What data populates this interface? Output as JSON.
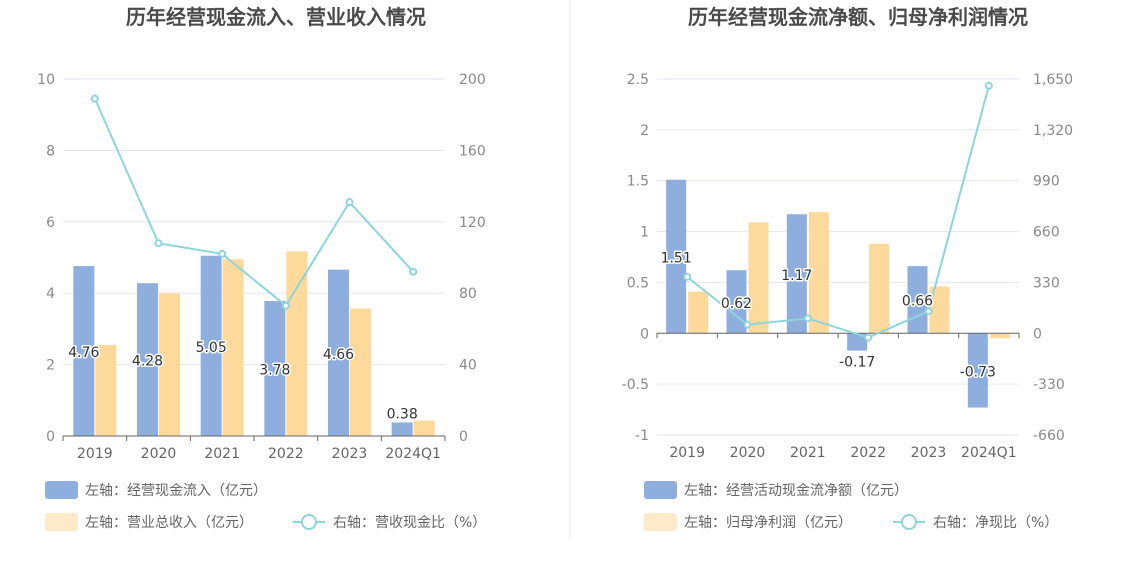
{
  "colors": {
    "bar_primary": "#8eaedd",
    "bar_secondary": "#fdd99c",
    "line": "#8dd5dc",
    "grid": "#e3e6f3",
    "axis": "#666666",
    "divider": "#eeeeee"
  },
  "chart_data": [
    {
      "type": "bar+line",
      "title": "历年经营现金流入、营业收入情况",
      "categories": [
        "2019",
        "2020",
        "2021",
        "2022",
        "2023",
        "2024Q1"
      ],
      "left_axis": {
        "min": 0,
        "max": 10,
        "ticks": [
          0,
          2,
          4,
          6,
          8,
          10
        ],
        "tick_labels": [
          "0",
          "2",
          "4",
          "6",
          "8",
          "10"
        ]
      },
      "right_axis": {
        "min": 0,
        "max": 200,
        "ticks": [
          0,
          40,
          80,
          120,
          160,
          200
        ],
        "tick_labels": [
          "0",
          "40",
          "80",
          "120",
          "160",
          "200"
        ]
      },
      "series": [
        {
          "name": "左轴：经营现金流入（亿元）",
          "kind": "bar",
          "axis": "left",
          "values": [
            4.76,
            4.28,
            5.05,
            3.78,
            4.66,
            0.38
          ],
          "labels": [
            "4.76",
            "4.28",
            "5.05",
            "3.78",
            "4.66",
            "0.38"
          ]
        },
        {
          "name": "左轴：营业总收入（亿元）",
          "kind": "bar",
          "axis": "left",
          "values": [
            2.55,
            4.0,
            4.95,
            5.17,
            3.57,
            0.43
          ]
        },
        {
          "name": "右轴：营收现金比（%）",
          "kind": "line",
          "axis": "right",
          "values": [
            189,
            108,
            102,
            73,
            131,
            92
          ]
        }
      ],
      "legend": [
        "左轴：经营现金流入（亿元）",
        "左轴：营业总收入（亿元）",
        "右轴：营收现金比（%）"
      ]
    },
    {
      "type": "bar+line",
      "title": "历年经营现金流净额、归母净利润情况",
      "categories": [
        "2019",
        "2020",
        "2021",
        "2022",
        "2023",
        "2024Q1"
      ],
      "left_axis": {
        "min": -1,
        "max": 2.5,
        "ticks": [
          -1,
          -0.5,
          0,
          0.5,
          1,
          1.5,
          2,
          2.5
        ],
        "tick_labels": [
          "-1",
          "-0.5",
          "0",
          "0.5",
          "1",
          "1.5",
          "2",
          "2.5"
        ]
      },
      "right_axis": {
        "min": -660,
        "max": 1650,
        "ticks": [
          -660,
          -330,
          0,
          330,
          660,
          990,
          1320,
          1650
        ],
        "tick_labels": [
          "-660",
          "-330",
          "0",
          "330",
          "660",
          "990",
          "1,320",
          "1,650"
        ]
      },
      "series": [
        {
          "name": "左轴：经营活动现金流净额（亿元）",
          "kind": "bar",
          "axis": "left",
          "values": [
            1.51,
            0.62,
            1.17,
            -0.17,
            0.66,
            -0.73
          ],
          "labels": [
            "1.51",
            "0.62",
            "1.17",
            "-0.17",
            "0.66",
            "-0.73"
          ]
        },
        {
          "name": "左轴：归母净利润（亿元）",
          "kind": "bar",
          "axis": "left",
          "values": [
            0.41,
            1.09,
            1.19,
            0.88,
            0.46,
            -0.05
          ]
        },
        {
          "name": "右轴：净现比（%）",
          "kind": "line",
          "axis": "right",
          "values": [
            366,
            56,
            97,
            -28,
            143,
            1606
          ]
        }
      ],
      "legend": [
        "左轴：经营活动现金流净额（亿元）",
        "左轴：归母净利润（亿元）",
        "右轴：净现比（%）"
      ]
    }
  ]
}
